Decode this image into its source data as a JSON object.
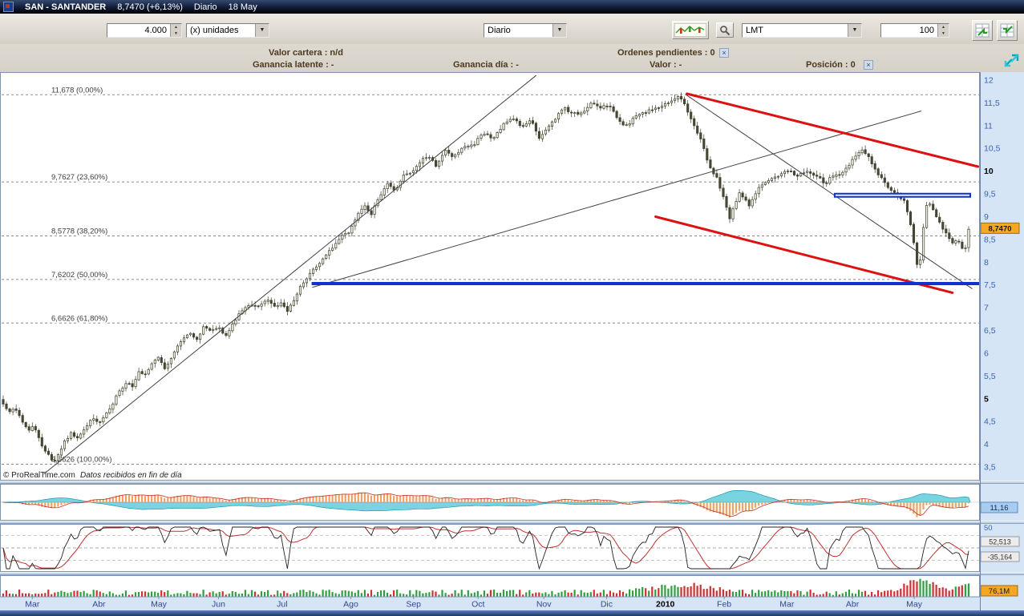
{
  "titlebar": {
    "symbol": "SAN - SANTANDER",
    "price": "8,7470 (+6,13%)",
    "period": "Diario",
    "date": "18 May"
  },
  "toolbar": {
    "quantity": "4.000",
    "units": "(x) unidades",
    "period": "Diario",
    "order_type": "LMT",
    "amount": "100"
  },
  "account": {
    "valor_cartera": "Valor cartera : n/d",
    "ordenes_pendientes": "Ordenes pendientes : 0",
    "ganancia_latente": "Ganancia latente : -",
    "ganancia_dia": "Ganancia día : -",
    "valor": "Valor : -",
    "posicion": "Posición : 0"
  },
  "chart": {
    "copyright": "© ProRealTime.com",
    "note": "Datos recibidos en fin de día",
    "price_tag": "8,7470",
    "fib_levels": [
      {
        "t": "11,678 (0,00%)",
        "v": 11.678
      },
      {
        "t": "9,7627 (23,60%)",
        "v": 9.7627
      },
      {
        "t": "8,5778 (38,20%)",
        "v": 8.5778
      },
      {
        "t": "7,6202 (50,00%)",
        "v": 7.6202
      },
      {
        "t": "6,6626 (61,80%)",
        "v": 6.6626
      },
      {
        "t": "3,5626 (100,00%)",
        "v": 3.5626
      }
    ],
    "y_ticks": [
      {
        "t": "12",
        "v": 12
      },
      {
        "t": "11,5",
        "v": 11.5
      },
      {
        "t": "11",
        "v": 11
      },
      {
        "t": "10,5",
        "v": 10.5
      },
      {
        "t": "10",
        "v": 10,
        "b": true
      },
      {
        "t": "9,5",
        "v": 9.5
      },
      {
        "t": "9",
        "v": 9
      },
      {
        "t": "8,5",
        "v": 8.5
      },
      {
        "t": "8",
        "v": 8
      },
      {
        "t": "7,5",
        "v": 7.5
      },
      {
        "t": "7",
        "v": 7
      },
      {
        "t": "6,5",
        "v": 6.5
      },
      {
        "t": "6",
        "v": 6
      },
      {
        "t": "5,5",
        "v": 5.5
      },
      {
        "t": "5",
        "v": 5,
        "b": true
      },
      {
        "t": "4,5",
        "v": 4.5
      },
      {
        "t": "4",
        "v": 4
      },
      {
        "t": "3,5",
        "v": 3.5
      }
    ],
    "x_labels": [
      {
        "t": "Mar",
        "f": 0.033
      },
      {
        "t": "Abr",
        "f": 0.101
      },
      {
        "t": "May",
        "f": 0.162
      },
      {
        "t": "Jun",
        "f": 0.223
      },
      {
        "t": "Jul",
        "f": 0.288
      },
      {
        "t": "Ago",
        "f": 0.358
      },
      {
        "t": "Sep",
        "f": 0.422
      },
      {
        "t": "Oct",
        "f": 0.488
      },
      {
        "t": "Nov",
        "f": 0.555
      },
      {
        "t": "Dic",
        "f": 0.619
      },
      {
        "t": "2010",
        "f": 0.679,
        "b": true
      },
      {
        "t": "Feb",
        "f": 0.739
      },
      {
        "t": "Mar",
        "f": 0.803
      },
      {
        "t": "Abr",
        "f": 0.87
      },
      {
        "t": "May",
        "f": 0.933
      }
    ]
  },
  "panels": {
    "macd_value": "11,16",
    "osc_tick": "50",
    "osc_value_1": "52,513",
    "osc_value_2": "-35,164",
    "volume_value": "76,1M"
  },
  "chart_data": {
    "type": "candlestick",
    "symbol": "SAN - SANTANDER",
    "timeframe": "Diario",
    "date_range": [
      "Mar 2009",
      "18 May 2010"
    ],
    "price_range": [
      3.201,
      12.176
    ],
    "last_price": 8.747,
    "change_pct": 6.13,
    "candle_count": 300,
    "close_anchors": [
      [
        0.0,
        4.9
      ],
      [
        0.006,
        4.7
      ],
      [
        0.012,
        4.82
      ],
      [
        0.018,
        4.55
      ],
      [
        0.025,
        4.3
      ],
      [
        0.032,
        4.38
      ],
      [
        0.038,
        4.05
      ],
      [
        0.045,
        3.8
      ],
      [
        0.052,
        3.6
      ],
      [
        0.056,
        3.76
      ],
      [
        0.062,
        4.0
      ],
      [
        0.07,
        4.25
      ],
      [
        0.078,
        4.1
      ],
      [
        0.085,
        4.4
      ],
      [
        0.093,
        4.55
      ],
      [
        0.101,
        4.5
      ],
      [
        0.11,
        4.75
      ],
      [
        0.118,
        5.1
      ],
      [
        0.127,
        5.35
      ],
      [
        0.134,
        5.25
      ],
      [
        0.141,
        5.6
      ],
      [
        0.148,
        5.5
      ],
      [
        0.155,
        5.85
      ],
      [
        0.162,
        5.9
      ],
      [
        0.168,
        5.65
      ],
      [
        0.175,
        5.95
      ],
      [
        0.183,
        6.25
      ],
      [
        0.192,
        6.45
      ],
      [
        0.2,
        6.3
      ],
      [
        0.208,
        6.6
      ],
      [
        0.216,
        6.5
      ],
      [
        0.223,
        6.6
      ],
      [
        0.23,
        6.35
      ],
      [
        0.238,
        6.65
      ],
      [
        0.247,
        6.95
      ],
      [
        0.256,
        7.1
      ],
      [
        0.265,
        7.0
      ],
      [
        0.274,
        7.2
      ],
      [
        0.281,
        7.05
      ],
      [
        0.288,
        7.1
      ],
      [
        0.294,
        6.9
      ],
      [
        0.301,
        7.15
      ],
      [
        0.31,
        7.55
      ],
      [
        0.32,
        7.8
      ],
      [
        0.33,
        8.05
      ],
      [
        0.34,
        8.3
      ],
      [
        0.349,
        8.55
      ],
      [
        0.358,
        8.65
      ],
      [
        0.366,
        9.0
      ],
      [
        0.374,
        9.25
      ],
      [
        0.381,
        9.05
      ],
      [
        0.39,
        9.45
      ],
      [
        0.398,
        9.7
      ],
      [
        0.406,
        9.55
      ],
      [
        0.414,
        9.9
      ],
      [
        0.422,
        9.95
      ],
      [
        0.431,
        10.2
      ],
      [
        0.44,
        10.35
      ],
      [
        0.449,
        10.1
      ],
      [
        0.458,
        10.45
      ],
      [
        0.467,
        10.3
      ],
      [
        0.476,
        10.55
      ],
      [
        0.488,
        10.6
      ],
      [
        0.497,
        10.85
      ],
      [
        0.507,
        10.7
      ],
      [
        0.517,
        11.0
      ],
      [
        0.527,
        11.2
      ],
      [
        0.537,
        10.95
      ],
      [
        0.546,
        11.15
      ],
      [
        0.555,
        10.7
      ],
      [
        0.563,
        10.95
      ],
      [
        0.572,
        11.15
      ],
      [
        0.581,
        11.4
      ],
      [
        0.59,
        11.25
      ],
      [
        0.6,
        11.3
      ],
      [
        0.61,
        11.5
      ],
      [
        0.619,
        11.4
      ],
      [
        0.628,
        11.45
      ],
      [
        0.637,
        11.1
      ],
      [
        0.646,
        11.0
      ],
      [
        0.655,
        11.2
      ],
      [
        0.664,
        11.3
      ],
      [
        0.672,
        11.35
      ],
      [
        0.679,
        11.4
      ],
      [
        0.687,
        11.5
      ],
      [
        0.695,
        11.6
      ],
      [
        0.7,
        11.65
      ],
      [
        0.706,
        11.45
      ],
      [
        0.712,
        11.15
      ],
      [
        0.718,
        10.9
      ],
      [
        0.724,
        10.6
      ],
      [
        0.73,
        10.2
      ],
      [
        0.735,
        9.95
      ],
      [
        0.739,
        9.85
      ],
      [
        0.744,
        9.55
      ],
      [
        0.749,
        9.2
      ],
      [
        0.753,
        8.95
      ],
      [
        0.758,
        9.3
      ],
      [
        0.763,
        9.55
      ],
      [
        0.768,
        9.4
      ],
      [
        0.773,
        9.2
      ],
      [
        0.778,
        9.5
      ],
      [
        0.784,
        9.65
      ],
      [
        0.79,
        9.75
      ],
      [
        0.796,
        9.85
      ],
      [
        0.803,
        9.9
      ],
      [
        0.809,
        10.0
      ],
      [
        0.815,
        10.05
      ],
      [
        0.821,
        9.9
      ],
      [
        0.827,
        9.95
      ],
      [
        0.833,
        10.0
      ],
      [
        0.839,
        9.9
      ],
      [
        0.845,
        9.85
      ],
      [
        0.851,
        9.7
      ],
      [
        0.857,
        9.85
      ],
      [
        0.863,
        9.9
      ],
      [
        0.87,
        9.95
      ],
      [
        0.876,
        10.15
      ],
      [
        0.882,
        10.3
      ],
      [
        0.888,
        10.45
      ],
      [
        0.894,
        10.4
      ],
      [
        0.9,
        10.15
      ],
      [
        0.906,
        9.95
      ],
      [
        0.912,
        9.75
      ],
      [
        0.918,
        9.6
      ],
      [
        0.924,
        9.5
      ],
      [
        0.929,
        9.42
      ],
      [
        0.933,
        9.35
      ],
      [
        0.937,
        9.05
      ],
      [
        0.941,
        8.7
      ],
      [
        0.945,
        8.2
      ],
      [
        0.948,
        7.65
      ],
      [
        0.951,
        8.3
      ],
      [
        0.954,
        8.9
      ],
      [
        0.957,
        9.3
      ],
      [
        0.96,
        9.25
      ],
      [
        0.964,
        9.1
      ],
      [
        0.968,
        8.95
      ],
      [
        0.972,
        8.8
      ],
      [
        0.976,
        8.65
      ],
      [
        0.98,
        8.5
      ],
      [
        0.984,
        8.4
      ],
      [
        0.988,
        8.55
      ],
      [
        0.992,
        8.35
      ],
      [
        0.996,
        8.25
      ],
      [
        1.0,
        8.747
      ]
    ],
    "fib_retracement": {
      "high": 11.678,
      "low": 3.5626,
      "ratios_pct": [
        0,
        23.6,
        38.2,
        50,
        61.8,
        100
      ]
    },
    "trendlines": [
      {
        "x1": 0.045,
        "p1": 3.35,
        "x2": 0.547,
        "p2": 12.1,
        "c": "#444444",
        "w": 1
      },
      {
        "x1": 0.319,
        "p1": 7.45,
        "x2": 0.94,
        "p2": 11.32,
        "c": "#444444",
        "w": 1
      },
      {
        "x1": 0.7,
        "p1": 11.68,
        "x2": 0.992,
        "p2": 7.42,
        "c": "#444444",
        "w": 1
      },
      {
        "x1": 0.701,
        "p1": 11.7,
        "x2": 0.998,
        "p2": 10.1,
        "c": "#dd1111",
        "w": 3
      },
      {
        "x1": 0.669,
        "p1": 9.0,
        "x2": 0.972,
        "p2": 7.33,
        "c": "#dd1111",
        "w": 3
      }
    ],
    "levels": [
      {
        "price": 9.47,
        "x1": 0.851,
        "x2": 0.991,
        "c": "#1133cc",
        "w": 6,
        "hollow": true
      },
      {
        "price": 7.53,
        "x1": 0.318,
        "x2": 1.0,
        "c": "#1133cc",
        "w": 4,
        "hollow": false
      }
    ],
    "indicators": [
      {
        "name": "macd-histogram",
        "panel": 1,
        "value_label": "11,16"
      },
      {
        "name": "stochastic-oscillator",
        "panel": 2,
        "axis_tick": "50",
        "values": [
          "52,513",
          "-35,164"
        ]
      },
      {
        "name": "volume",
        "panel": 3,
        "value_label": "76,1M"
      }
    ]
  }
}
